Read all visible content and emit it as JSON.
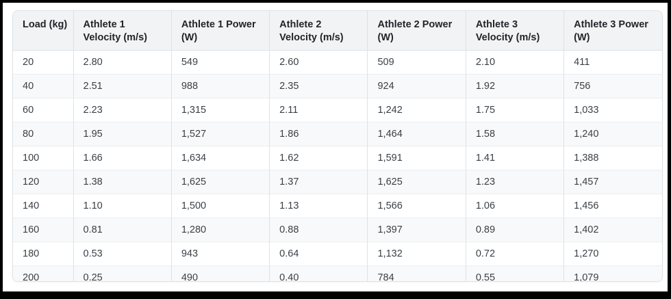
{
  "table": {
    "columns": [
      "Load (kg)",
      "Athlete 1 Velocity (m/s)",
      "Athlete 1 Power (W)",
      "Athlete 2 Velocity (m/s)",
      "Athlete 2 Power (W)",
      "Athlete 3 Velocity (m/s)",
      "Athlete 3 Power (W)"
    ],
    "rows": [
      [
        "20",
        "2.80",
        "549",
        "2.60",
        "509",
        "2.10",
        "411"
      ],
      [
        "40",
        "2.51",
        "988",
        "2.35",
        "924",
        "1.92",
        "756"
      ],
      [
        "60",
        "2.23",
        "1,315",
        "2.11",
        "1,242",
        "1.75",
        "1,033"
      ],
      [
        "80",
        "1.95",
        "1,527",
        "1.86",
        "1,464",
        "1.58",
        "1,240"
      ],
      [
        "100",
        "1.66",
        "1,634",
        "1.62",
        "1,591",
        "1.41",
        "1,388"
      ],
      [
        "120",
        "1.38",
        "1,625",
        "1.37",
        "1,625",
        "1.23",
        "1,457"
      ],
      [
        "140",
        "1.10",
        "1,500",
        "1.13",
        "1,566",
        "1.06",
        "1,456"
      ],
      [
        "160",
        "0.81",
        "1,280",
        "0.88",
        "1,397",
        "0.89",
        "1,402"
      ],
      [
        "180",
        "0.53",
        "943",
        "0.64",
        "1,132",
        "0.72",
        "1,270"
      ],
      [
        "200",
        "0.25",
        "490",
        "0.40",
        "784",
        "0.55",
        "1,079"
      ]
    ]
  },
  "chart_data": {
    "type": "table",
    "title": "",
    "categories_label": "Load (kg)",
    "categories": [
      20,
      40,
      60,
      80,
      100,
      120,
      140,
      160,
      180,
      200
    ],
    "series": [
      {
        "name": "Athlete 1 Velocity (m/s)",
        "values": [
          2.8,
          2.51,
          2.23,
          1.95,
          1.66,
          1.38,
          1.1,
          0.81,
          0.53,
          0.25
        ]
      },
      {
        "name": "Athlete 1 Power (W)",
        "values": [
          549,
          988,
          1315,
          1527,
          1634,
          1625,
          1500,
          1280,
          943,
          490
        ]
      },
      {
        "name": "Athlete 2 Velocity (m/s)",
        "values": [
          2.6,
          2.35,
          2.11,
          1.86,
          1.62,
          1.37,
          1.13,
          0.88,
          0.64,
          0.4
        ]
      },
      {
        "name": "Athlete 2 Power (W)",
        "values": [
          509,
          924,
          1242,
          1464,
          1591,
          1625,
          1566,
          1397,
          1132,
          784
        ]
      },
      {
        "name": "Athlete 3 Velocity (m/s)",
        "values": [
          2.1,
          1.92,
          1.75,
          1.58,
          1.41,
          1.23,
          1.06,
          0.89,
          0.72,
          0.55
        ]
      },
      {
        "name": "Athlete 3 Power (W)",
        "values": [
          411,
          756,
          1033,
          1240,
          1388,
          1457,
          1456,
          1402,
          1270,
          1079
        ]
      }
    ]
  },
  "colors": {
    "frame": "#000000",
    "page_background": "#ffffff",
    "header_background": "#f1f3f5",
    "stripe_background": "#f8f9fa",
    "border": "#dee2e6",
    "header_text": "#212529",
    "cell_text": "#3a4046"
  }
}
